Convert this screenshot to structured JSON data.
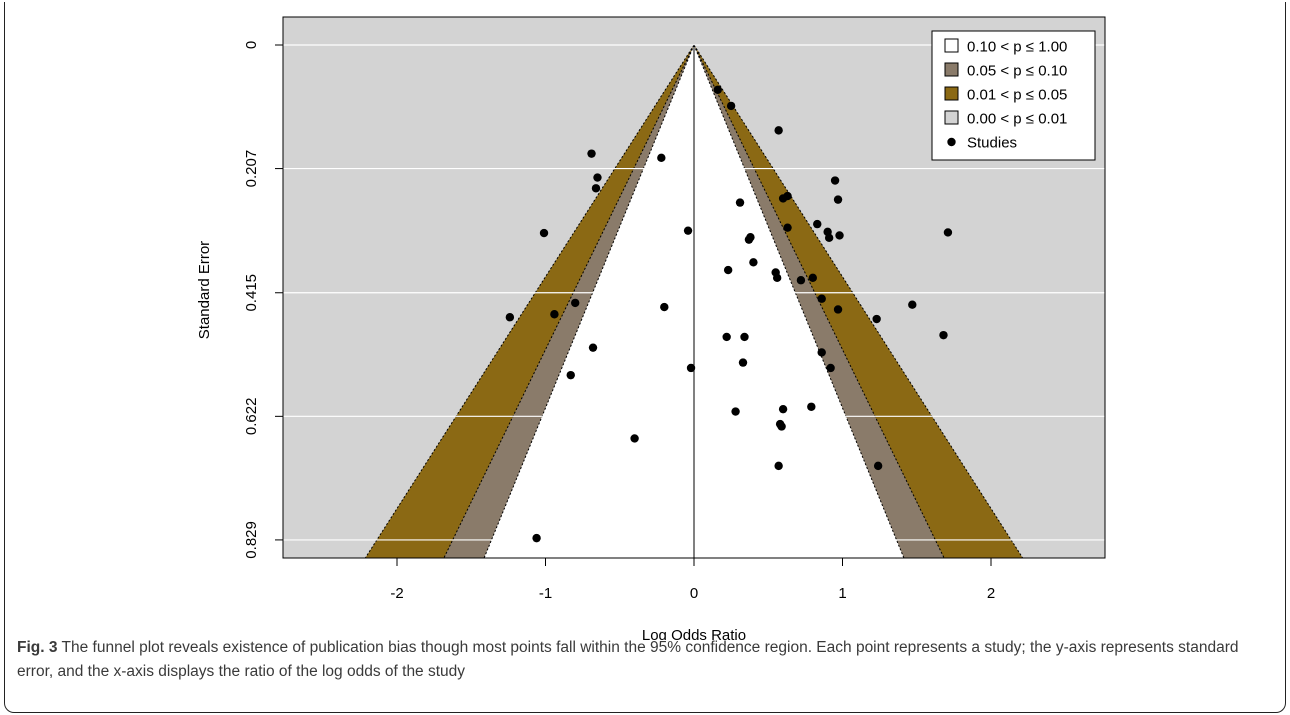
{
  "chart_data": {
    "type": "scatter",
    "subtype": "contour-enhanced funnel plot",
    "xlabel": "Log Odds Ratio",
    "ylabel": "Standard Error",
    "xlim": [
      -2.78,
      2.78
    ],
    "ylim": [
      0.8595,
      0.0
    ],
    "x_ticks": [
      -2,
      -1,
      0,
      1,
      2
    ],
    "x_tick_labels": [
      "-2",
      "-1",
      "0",
      "1",
      "2"
    ],
    "y_ticks": [
      0,
      0.207,
      0.415,
      0.622,
      0.829
    ],
    "y_tick_labels": [
      "0",
      "0.207",
      "0.415",
      "0.622",
      "0.829"
    ],
    "grid": true,
    "background_color": "#d3d3d3",
    "reference_line_x": 0,
    "contour_z": [
      1.645,
      1.96,
      2.576
    ],
    "regions": [
      {
        "label": "0.10 < p ≤ 1.00",
        "color": "#ffffff"
      },
      {
        "label": "0.05 < p ≤ 0.10",
        "color": "#8a7b6a"
      },
      {
        "label": "0.01 < p ≤ 0.05",
        "color": "#8b6914"
      },
      {
        "label": "0.00 < p ≤ 0.01",
        "color": "#d3d3d3"
      }
    ],
    "series": [
      {
        "name": "Studies",
        "color": "#000000",
        "points": [
          {
            "x": 0.16,
            "y": 0.075
          },
          {
            "x": 0.25,
            "y": 0.102
          },
          {
            "x": 0.57,
            "y": 0.143
          },
          {
            "x": -0.69,
            "y": 0.182
          },
          {
            "x": -0.22,
            "y": 0.189
          },
          {
            "x": -0.65,
            "y": 0.222
          },
          {
            "x": -0.66,
            "y": 0.24
          },
          {
            "x": 0.95,
            "y": 0.227
          },
          {
            "x": 0.63,
            "y": 0.253
          },
          {
            "x": 0.6,
            "y": 0.257
          },
          {
            "x": 0.31,
            "y": 0.264
          },
          {
            "x": 0.97,
            "y": 0.259
          },
          {
            "x": 0.83,
            "y": 0.3
          },
          {
            "x": 0.9,
            "y": 0.313
          },
          {
            "x": 0.91,
            "y": 0.323
          },
          {
            "x": 0.98,
            "y": 0.319
          },
          {
            "x": 1.71,
            "y": 0.314
          },
          {
            "x": 0.63,
            "y": 0.306
          },
          {
            "x": -1.01,
            "y": 0.315
          },
          {
            "x": -0.04,
            "y": 0.311
          },
          {
            "x": 0.37,
            "y": 0.326
          },
          {
            "x": 0.38,
            "y": 0.322
          },
          {
            "x": 0.4,
            "y": 0.364
          },
          {
            "x": 0.23,
            "y": 0.377
          },
          {
            "x": 0.55,
            "y": 0.381
          },
          {
            "x": 0.56,
            "y": 0.39
          },
          {
            "x": 0.8,
            "y": 0.39
          },
          {
            "x": 0.72,
            "y": 0.394
          },
          {
            "x": 0.86,
            "y": 0.425
          },
          {
            "x": 0.97,
            "y": 0.443
          },
          {
            "x": 1.47,
            "y": 0.435
          },
          {
            "x": 1.23,
            "y": 0.459
          },
          {
            "x": 1.68,
            "y": 0.486
          },
          {
            "x": -0.8,
            "y": 0.432
          },
          {
            "x": -0.94,
            "y": 0.451
          },
          {
            "x": -1.24,
            "y": 0.456
          },
          {
            "x": -0.2,
            "y": 0.439
          },
          {
            "x": 0.22,
            "y": 0.489
          },
          {
            "x": 0.34,
            "y": 0.489
          },
          {
            "x": -0.68,
            "y": 0.507
          },
          {
            "x": 0.86,
            "y": 0.515
          },
          {
            "x": 0.33,
            "y": 0.532
          },
          {
            "x": 0.92,
            "y": 0.541
          },
          {
            "x": -0.02,
            "y": 0.541
          },
          {
            "x": -0.83,
            "y": 0.553
          },
          {
            "x": 0.79,
            "y": 0.606
          },
          {
            "x": 0.6,
            "y": 0.61
          },
          {
            "x": 0.28,
            "y": 0.614
          },
          {
            "x": 0.58,
            "y": 0.635
          },
          {
            "x": 0.59,
            "y": 0.639
          },
          {
            "x": -0.4,
            "y": 0.659
          },
          {
            "x": 0.57,
            "y": 0.705
          },
          {
            "x": 1.24,
            "y": 0.705
          },
          {
            "x": -1.06,
            "y": 0.826
          }
        ]
      }
    ],
    "legend": {
      "placement": "top-right",
      "entries": [
        {
          "label": "0.10 < p ≤ 1.00",
          "marker": "square",
          "color": "#ffffff"
        },
        {
          "label": "0.05 < p ≤ 0.10",
          "marker": "square",
          "color": "#8a7b6a"
        },
        {
          "label": "0.01 < p ≤ 0.05",
          "marker": "square",
          "color": "#8b6914"
        },
        {
          "label": "0.00 < p ≤ 0.01",
          "marker": "square",
          "color": "#d3d3d3"
        },
        {
          "label": "Studies",
          "marker": "dot",
          "color": "#000000"
        }
      ]
    }
  },
  "caption": {
    "label": "Fig. 3",
    "text": "The funnel plot reveals existence of publication bias though most points fall within the 95% confidence region. Each point represents a study; the y-axis represents standard error, and the x-axis displays the ratio of the log odds of the study"
  }
}
